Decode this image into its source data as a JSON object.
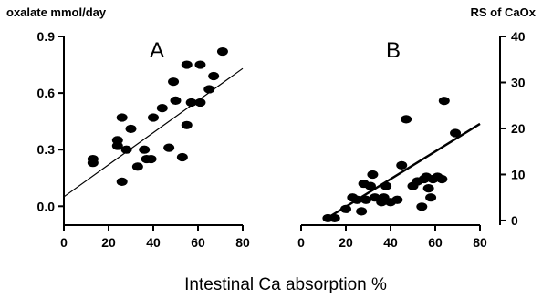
{
  "chart_data": [
    {
      "type": "scatter",
      "panel_label": "A",
      "ylabel": "oxalate mmol/day",
      "xlabel": "Intestinal Ca absorption %",
      "xlim": [
        0,
        80
      ],
      "ylim": [
        -0.1,
        0.9
      ],
      "x_ticks": [
        0,
        20,
        40,
        60,
        80
      ],
      "y_ticks": [
        0.0,
        0.3,
        0.6,
        0.9
      ],
      "y_tick_labels": [
        "0.0",
        "0.3",
        "0.6",
        "0.9"
      ],
      "points": [
        {
          "x": 13,
          "y": 0.25
        },
        {
          "x": 13,
          "y": 0.23
        },
        {
          "x": 24,
          "y": 0.35
        },
        {
          "x": 24,
          "y": 0.32
        },
        {
          "x": 26,
          "y": 0.47
        },
        {
          "x": 26,
          "y": 0.13
        },
        {
          "x": 28,
          "y": 0.3
        },
        {
          "x": 30,
          "y": 0.41
        },
        {
          "x": 33,
          "y": 0.21
        },
        {
          "x": 36,
          "y": 0.3
        },
        {
          "x": 37,
          "y": 0.25
        },
        {
          "x": 39,
          "y": 0.25
        },
        {
          "x": 40,
          "y": 0.47
        },
        {
          "x": 44,
          "y": 0.52
        },
        {
          "x": 47,
          "y": 0.31
        },
        {
          "x": 49,
          "y": 0.66
        },
        {
          "x": 50,
          "y": 0.56
        },
        {
          "x": 53,
          "y": 0.26
        },
        {
          "x": 55,
          "y": 0.75
        },
        {
          "x": 55,
          "y": 0.43
        },
        {
          "x": 57,
          "y": 0.55
        },
        {
          "x": 61,
          "y": 0.75
        },
        {
          "x": 61,
          "y": 0.55
        },
        {
          "x": 65,
          "y": 0.62
        },
        {
          "x": 67,
          "y": 0.69
        },
        {
          "x": 71,
          "y": 0.82
        }
      ],
      "fit_line": {
        "x": [
          0,
          80
        ],
        "y": [
          0.05,
          0.73
        ]
      }
    },
    {
      "type": "scatter",
      "panel_label": "B",
      "ylabel": "RS of CaOx",
      "xlabel": "Intestinal Ca absorption %",
      "xlim": [
        0,
        80
      ],
      "ylim": [
        -1,
        40
      ],
      "x_ticks": [
        0,
        20,
        40,
        60,
        80
      ],
      "y_ticks": [
        0,
        10,
        20,
        30,
        40
      ],
      "y_tick_labels": [
        "0",
        "10",
        "20",
        "30",
        "40"
      ],
      "points": [
        {
          "x": 12,
          "y": 0.5
        },
        {
          "x": 15,
          "y": 0.5
        },
        {
          "x": 20,
          "y": 2.5
        },
        {
          "x": 23,
          "y": 5
        },
        {
          "x": 25,
          "y": 4.5
        },
        {
          "x": 27,
          "y": 2
        },
        {
          "x": 28,
          "y": 8
        },
        {
          "x": 29,
          "y": 4.5
        },
        {
          "x": 31,
          "y": 7.5
        },
        {
          "x": 32,
          "y": 10
        },
        {
          "x": 33,
          "y": 5
        },
        {
          "x": 36,
          "y": 4
        },
        {
          "x": 37,
          "y": 5
        },
        {
          "x": 38,
          "y": 7.5
        },
        {
          "x": 40,
          "y": 4
        },
        {
          "x": 43,
          "y": 4.5
        },
        {
          "x": 45,
          "y": 12
        },
        {
          "x": 47,
          "y": 22
        },
        {
          "x": 50,
          "y": 7.5
        },
        {
          "x": 52,
          "y": 8.5
        },
        {
          "x": 54,
          "y": 3
        },
        {
          "x": 55,
          "y": 9
        },
        {
          "x": 56,
          "y": 9.5
        },
        {
          "x": 57,
          "y": 7
        },
        {
          "x": 58,
          "y": 5
        },
        {
          "x": 59,
          "y": 9
        },
        {
          "x": 61,
          "y": 9.5
        },
        {
          "x": 63,
          "y": 9
        },
        {
          "x": 64,
          "y": 26
        },
        {
          "x": 69,
          "y": 19
        }
      ],
      "fit_line": {
        "x": [
          10,
          80
        ],
        "y": [
          0,
          21
        ]
      }
    }
  ]
}
